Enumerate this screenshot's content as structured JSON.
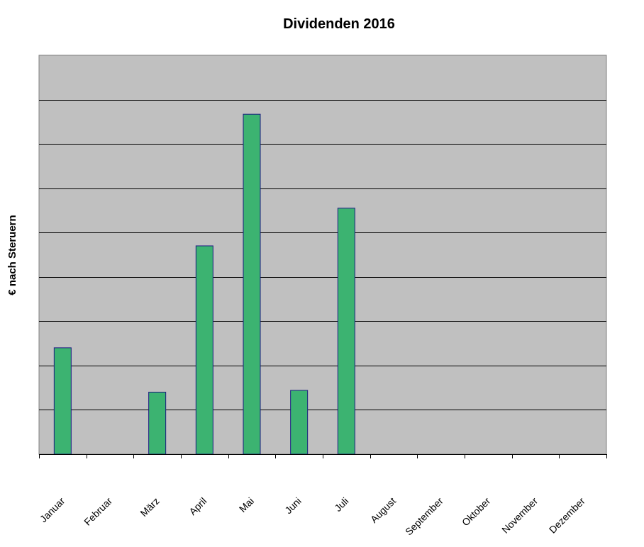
{
  "chart_data": {
    "type": "bar",
    "title": "Dividenden 2016",
    "xlabel": "",
    "ylabel": "€ nach Steruern",
    "categories": [
      "Januar",
      "Februar",
      "März",
      "April",
      "Mai",
      "Juni",
      "Juli",
      "August",
      "September",
      "Oktober",
      "November",
      "Dezember"
    ],
    "values": [
      2.4,
      0,
      1.4,
      4.7,
      7.67,
      1.44,
      5.55,
      0,
      0,
      0,
      0,
      0
    ],
    "ylim": [
      0,
      9
    ],
    "grid": true,
    "legend": "none",
    "colors": {
      "plot_bg": "#c0c0c0",
      "bar_fill": "#3cb371",
      "bar_stroke": "#1a1a80",
      "gridline": "#000000"
    }
  }
}
